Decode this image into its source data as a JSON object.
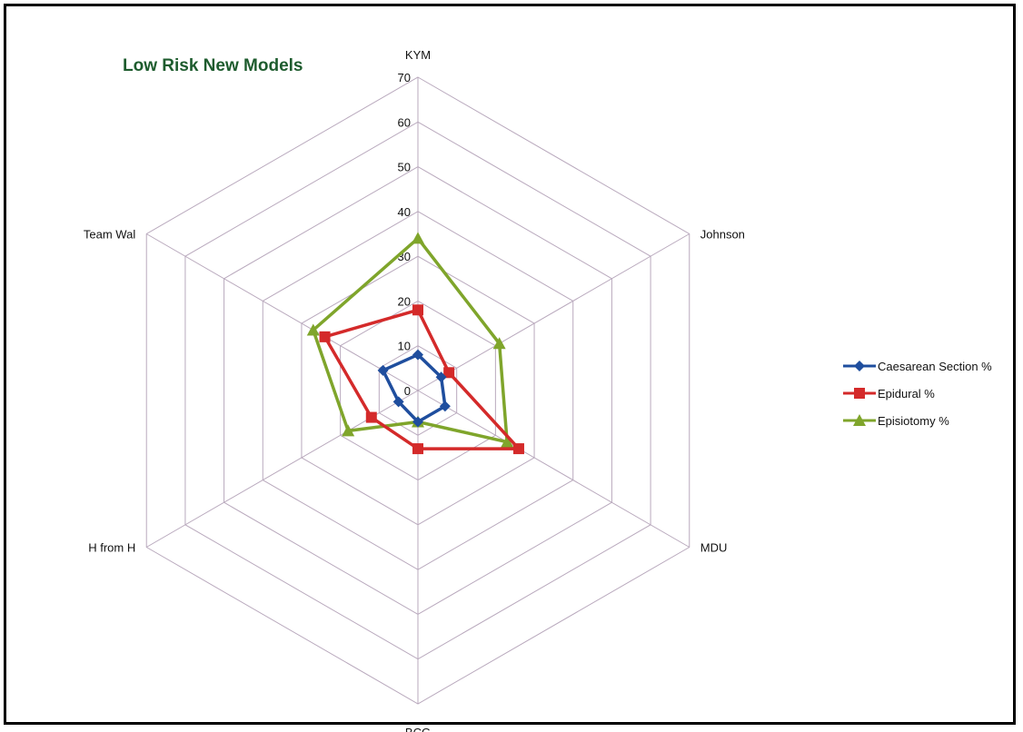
{
  "chart_data": {
    "type": "radar",
    "title": "Low Risk New Models",
    "categories": [
      "KYM",
      "Johnson",
      "MDU",
      "BCG",
      "H from H",
      "Team Wal"
    ],
    "rlim": [
      0,
      70
    ],
    "ticks": [
      0,
      10,
      20,
      30,
      40,
      50,
      60,
      70
    ],
    "grid": true,
    "legend_position": "right",
    "series": [
      {
        "name": "Caesarean Section %",
        "color": "#1f4e9e",
        "marker": "diamond",
        "values": [
          8,
          6,
          7,
          7,
          5,
          9
        ]
      },
      {
        "name": "Epidural %",
        "color": "#d42a2a",
        "marker": "square",
        "values": [
          18,
          8,
          26,
          13,
          12,
          24
        ]
      },
      {
        "name": "Episiotomy %",
        "color": "#7fa52b",
        "marker": "triangle",
        "values": [
          34,
          21,
          23,
          7,
          18,
          27
        ]
      }
    ]
  }
}
